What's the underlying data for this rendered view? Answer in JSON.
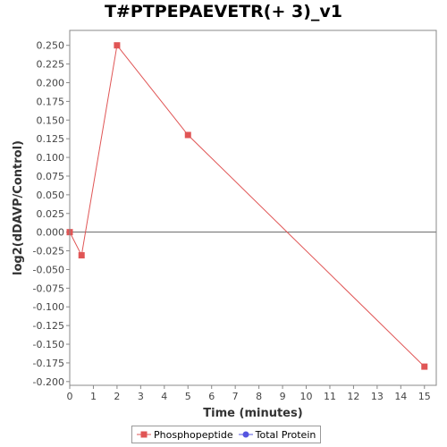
{
  "chart_data": {
    "type": "line",
    "title": "T#PTPEPAEVETR(+ 3)_v1",
    "xlabel": "Time (minutes)",
    "ylabel": "log2(dDAVP/Control)",
    "xlim": [
      0,
      15.5
    ],
    "ylim": [
      -0.205,
      0.27
    ],
    "xticks": [
      0,
      1,
      2,
      3,
      4,
      5,
      6,
      7,
      8,
      9,
      10,
      11,
      12,
      13,
      14,
      15
    ],
    "yticks": [
      0.25,
      0.225,
      0.2,
      0.175,
      0.15,
      0.125,
      0.1,
      0.075,
      0.05,
      0.025,
      0.0,
      -0.025,
      -0.05,
      -0.075,
      -0.1,
      -0.125,
      -0.15,
      -0.175,
      -0.2
    ],
    "ytick_labels": [
      "0.250",
      "0.225",
      "0.200",
      "0.175",
      "0.150",
      "0.125",
      "0.100",
      "0.075",
      "0.050",
      "0.025",
      "0.000",
      "-0.025",
      "-0.050",
      "-0.075",
      "-0.100",
      "-0.125",
      "-0.150",
      "-0.175",
      "-0.200"
    ],
    "zero_line": true,
    "grid": false,
    "legend_position": "bottom-center",
    "series": [
      {
        "name": "Phosphopeptide",
        "color": "#e05555",
        "marker": "square",
        "points": [
          {
            "x": 0,
            "y": 0.0
          },
          {
            "x": 0.5,
            "y": -0.031
          },
          {
            "x": 2,
            "y": 0.25
          },
          {
            "x": 5,
            "y": 0.13
          },
          {
            "x": 15,
            "y": -0.18
          }
        ]
      },
      {
        "name": "Total Protein",
        "color": "#5555e0",
        "marker": "circle",
        "points": []
      }
    ]
  }
}
